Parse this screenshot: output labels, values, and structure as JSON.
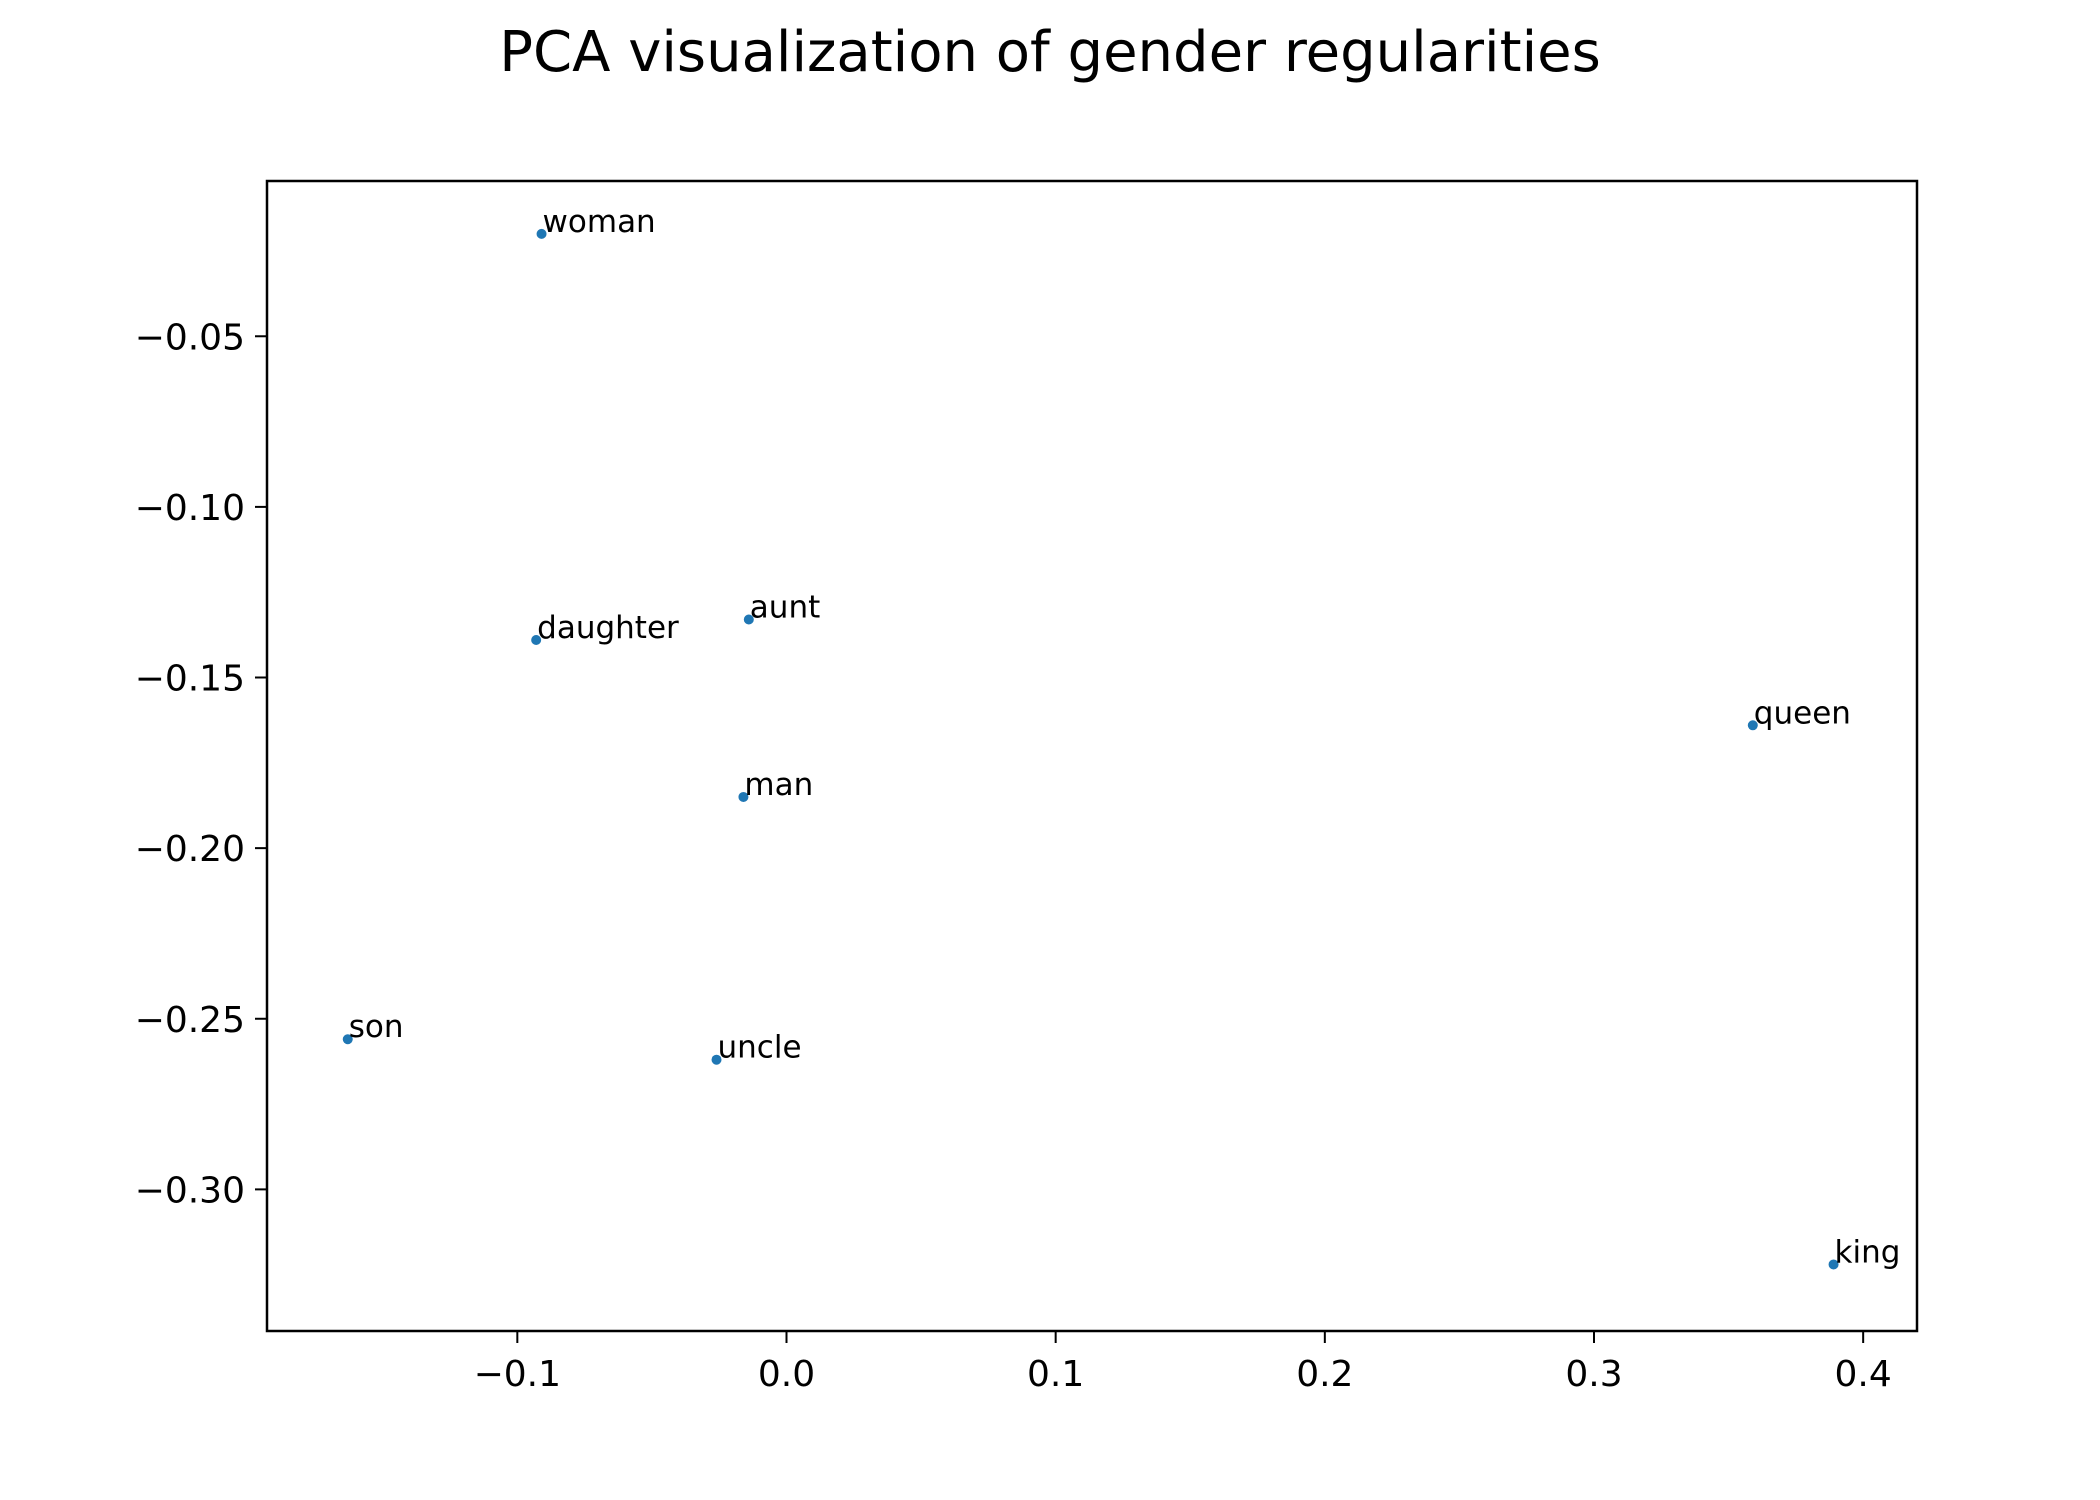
{
  "chart_data": {
    "type": "scatter",
    "title": "PCA visualization of gender regularities",
    "xlabel": "",
    "ylabel": "",
    "xlim": [
      -0.193,
      0.42
    ],
    "ylim": [
      -0.3415,
      -0.0045
    ],
    "xticks": [
      {
        "value": -0.1,
        "label": "−0.1"
      },
      {
        "value": 0.0,
        "label": "0.0"
      },
      {
        "value": 0.1,
        "label": "0.1"
      },
      {
        "value": 0.2,
        "label": "0.2"
      },
      {
        "value": 0.3,
        "label": "0.3"
      },
      {
        "value": 0.4,
        "label": "0.4"
      }
    ],
    "yticks": [
      {
        "value": -0.05,
        "label": "−0.05"
      },
      {
        "value": -0.1,
        "label": "−0.10"
      },
      {
        "value": -0.15,
        "label": "−0.15"
      },
      {
        "value": -0.2,
        "label": "−0.20"
      },
      {
        "value": -0.25,
        "label": "−0.25"
      },
      {
        "value": -0.3,
        "label": "−0.30"
      }
    ],
    "grid": false,
    "point_color": "#1f77b4",
    "points": [
      {
        "label": "woman",
        "x": -0.091,
        "y": -0.02
      },
      {
        "label": "daughter",
        "x": -0.093,
        "y": -0.139
      },
      {
        "label": "aunt",
        "x": -0.014,
        "y": -0.133
      },
      {
        "label": "man",
        "x": -0.016,
        "y": -0.185
      },
      {
        "label": "queen",
        "x": 0.359,
        "y": -0.164
      },
      {
        "label": "son",
        "x": -0.163,
        "y": -0.256
      },
      {
        "label": "uncle",
        "x": -0.026,
        "y": -0.262
      },
      {
        "label": "king",
        "x": 0.389,
        "y": -0.322
      }
    ]
  }
}
